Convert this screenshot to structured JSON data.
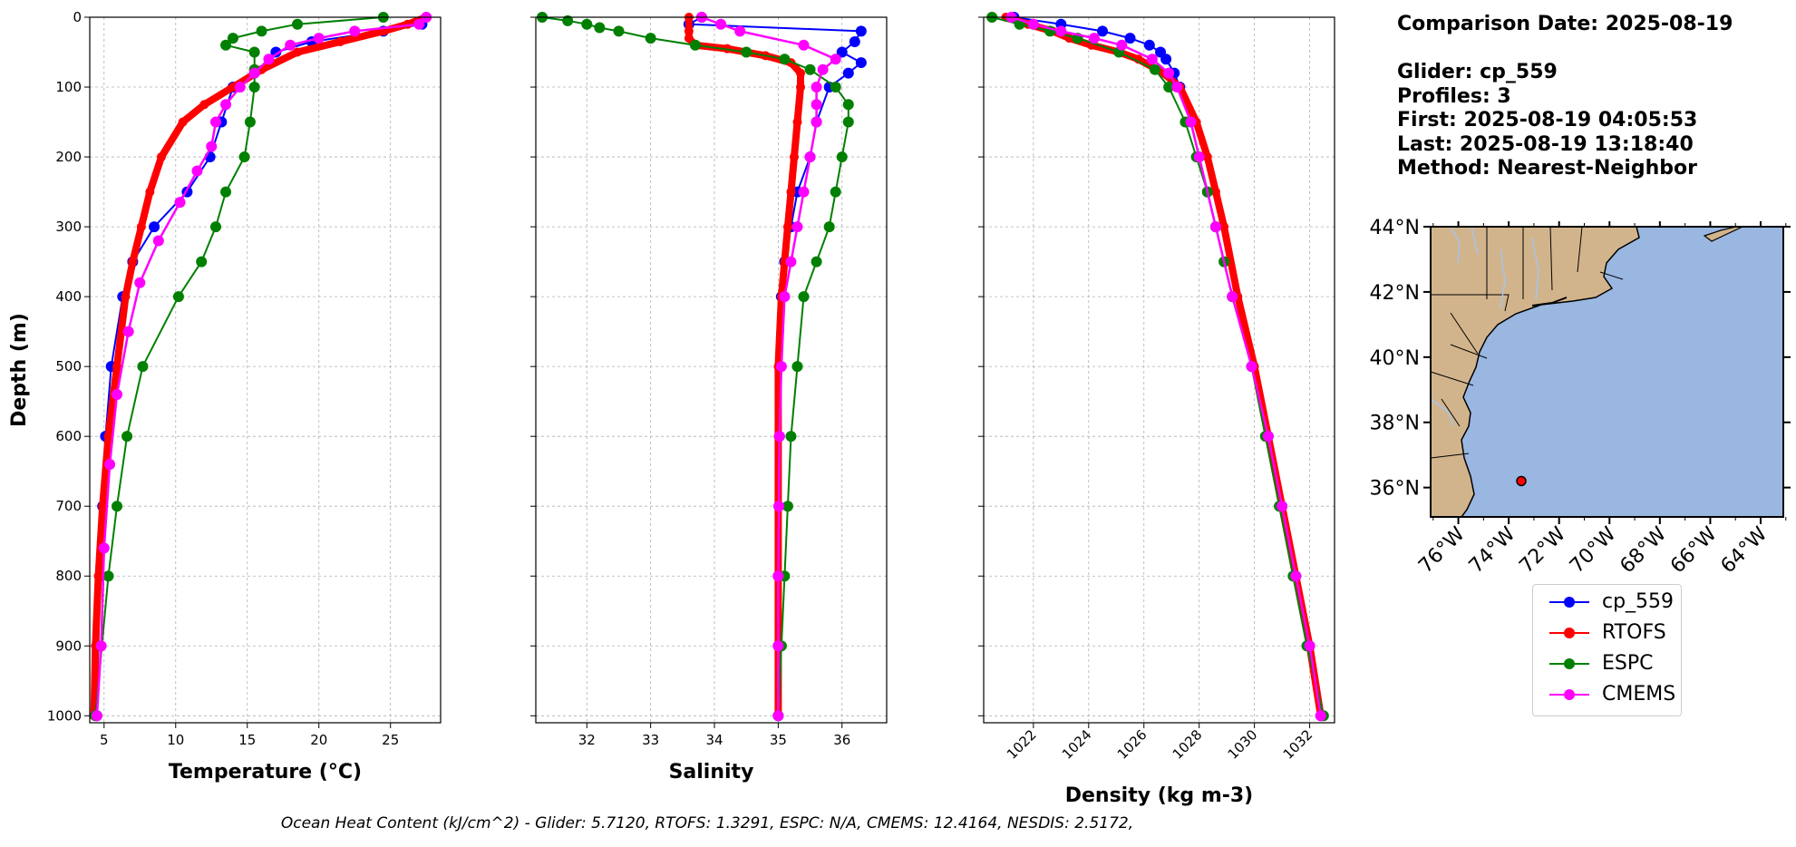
{
  "info": {
    "comparison_date": "Comparison Date: 2025-08-19",
    "glider": "Glider: cp_559",
    "profiles": "Profiles: 3",
    "first": "First: 2025-08-19 04:05:53",
    "last": "Last: 2025-08-19 13:18:40",
    "method": "Method: Nearest-Neighbor"
  },
  "footer": "Ocean Heat Content (kJ/cm^2) - Glider: 5.7120,  RTOFS: 1.3291,  ESPC: N/A,  CMEMS: 12.4164,  NESDIS: 2.5172,",
  "colors": {
    "glider": "#0000ff",
    "rtofs": "#ff0000",
    "espc": "#008000",
    "cmems": "#ff00ff",
    "glider_raw": "#00ffff",
    "land": "#d2b48c",
    "ocean": "#9ab7e2",
    "rivers": "#a6c4e8"
  },
  "chart_data": [
    {
      "type": "line",
      "xlabel": "Temperature (°C)",
      "ylabel": "Depth (m)",
      "xlim": [
        4,
        28.5
      ],
      "ylim": [
        1010,
        0
      ],
      "xticks": [
        5,
        10,
        15,
        20,
        25
      ],
      "yticks": [
        0,
        100,
        200,
        300,
        400,
        500,
        600,
        700,
        800,
        900,
        1000
      ],
      "grid": true,
      "series": [
        {
          "name": "cp_559",
          "y": [
            10,
            20,
            35,
            50,
            80,
            100,
            150,
            200,
            250,
            300,
            350,
            400,
            500,
            600,
            700,
            800,
            900,
            1000
          ],
          "x": [
            27.2,
            24.5,
            19.5,
            17.0,
            15.5,
            14.0,
            13.2,
            12.4,
            10.8,
            8.5,
            7.0,
            6.3,
            5.5,
            5.1,
            4.9,
            4.7,
            4.6,
            4.5
          ]
        },
        {
          "name": "RTOFS",
          "y": [
            0,
            10,
            20,
            35,
            50,
            75,
            100,
            125,
            150,
            200,
            250,
            300,
            350,
            400,
            500,
            600,
            700,
            800,
            900,
            1000
          ],
          "x": [
            27.5,
            26.2,
            24.5,
            21.5,
            18.5,
            16.0,
            14.0,
            12.0,
            10.5,
            9.0,
            8.2,
            7.6,
            7.0,
            6.5,
            5.9,
            5.3,
            4.9,
            4.6,
            4.4,
            4.3
          ]
        },
        {
          "name": "ESPC",
          "y": [
            0,
            10,
            20,
            30,
            40,
            50,
            75,
            100,
            150,
            200,
            250,
            300,
            350,
            400,
            500,
            600,
            700,
            800,
            1000
          ],
          "x": [
            24.5,
            18.5,
            16.0,
            14.0,
            13.5,
            15.5,
            15.5,
            15.5,
            15.2,
            14.8,
            13.5,
            12.8,
            11.8,
            10.2,
            7.7,
            6.6,
            5.9,
            5.3,
            4.4
          ]
        },
        {
          "name": "CMEMS",
          "y": [
            0,
            10,
            20,
            30,
            40,
            60,
            80,
            100,
            125,
            150,
            185,
            220,
            265,
            320,
            380,
            450,
            540,
            640,
            760,
            900,
            1000
          ],
          "x": [
            27.5,
            27.0,
            22.5,
            20.0,
            18.0,
            16.5,
            15.5,
            14.5,
            13.5,
            12.8,
            12.5,
            11.5,
            10.3,
            8.8,
            7.5,
            6.7,
            5.9,
            5.4,
            5.0,
            4.8,
            4.5
          ]
        }
      ]
    },
    {
      "type": "line",
      "xlabel": "Salinity",
      "xlim": [
        31.2,
        36.7
      ],
      "ylim": [
        1010,
        0
      ],
      "xticks": [
        32,
        33,
        34,
        35,
        36
      ],
      "grid": true,
      "series": [
        {
          "name": "cp_559",
          "y": [
            0,
            10,
            20,
            35,
            50,
            65,
            80,
            100,
            150,
            200,
            250,
            300,
            350,
            400,
            500,
            600,
            700,
            800,
            900,
            1000
          ],
          "x": [
            33.8,
            33.6,
            36.3,
            36.2,
            36.0,
            36.3,
            36.1,
            35.8,
            35.6,
            35.5,
            35.3,
            35.2,
            35.1,
            35.05,
            35.03,
            35.02,
            35.01,
            35.0,
            35.0,
            35.0
          ]
        },
        {
          "name": "RTOFS",
          "y": [
            0,
            20,
            30,
            40,
            45,
            55,
            65,
            80,
            100,
            150,
            200,
            250,
            300,
            350,
            400,
            500,
            600,
            700,
            800,
            900,
            1000
          ],
          "x": [
            33.6,
            33.6,
            33.6,
            33.7,
            34.2,
            34.8,
            35.2,
            35.35,
            35.35,
            35.3,
            35.25,
            35.2,
            35.15,
            35.1,
            35.05,
            35.0,
            35.0,
            35.0,
            35.0,
            35.0,
            35.0
          ]
        },
        {
          "name": "ESPC",
          "y": [
            0,
            5,
            10,
            15,
            20,
            30,
            40,
            50,
            60,
            75,
            100,
            125,
            150,
            200,
            250,
            300,
            350,
            400,
            500,
            600,
            700,
            800,
            900,
            1000
          ],
          "x": [
            31.3,
            31.7,
            32.0,
            32.2,
            32.5,
            33.0,
            33.7,
            34.5,
            35.1,
            35.5,
            35.9,
            36.1,
            36.1,
            36.0,
            35.9,
            35.8,
            35.6,
            35.4,
            35.3,
            35.2,
            35.15,
            35.1,
            35.05,
            35.0
          ]
        },
        {
          "name": "CMEMS",
          "y": [
            0,
            10,
            20,
            40,
            60,
            75,
            100,
            125,
            150,
            200,
            250,
            300,
            350,
            400,
            500,
            600,
            700,
            800,
            900,
            1000
          ],
          "x": [
            33.8,
            34.1,
            34.4,
            35.4,
            35.9,
            35.7,
            35.6,
            35.6,
            35.6,
            35.5,
            35.4,
            35.3,
            35.2,
            35.1,
            35.05,
            35.02,
            35.01,
            35.0,
            35.0,
            35.0
          ]
        }
      ]
    },
    {
      "type": "line",
      "xlabel": "Density (kg m-3)",
      "xlim": [
        1020.2,
        1032.9
      ],
      "ylim": [
        1010,
        0
      ],
      "xticks": [
        1022,
        1024,
        1026,
        1028,
        1030,
        1032
      ],
      "grid": true,
      "series": [
        {
          "name": "cp_559",
          "y": [
            0,
            10,
            20,
            30,
            40,
            50,
            60,
            80,
            100,
            150,
            200,
            250,
            300,
            400,
            500,
            600,
            700,
            800,
            900,
            1000
          ],
          "x": [
            1021.3,
            1023.0,
            1024.5,
            1025.5,
            1026.2,
            1026.6,
            1026.8,
            1027.1,
            1027.3,
            1027.7,
            1028.0,
            1028.3,
            1028.6,
            1029.2,
            1029.9,
            1030.5,
            1031.0,
            1031.5,
            1032.0,
            1032.4
          ]
        },
        {
          "name": "RTOFS",
          "y": [
            0,
            10,
            20,
            30,
            40,
            50,
            60,
            80,
            100,
            150,
            200,
            250,
            300,
            400,
            500,
            600,
            700,
            800,
            900,
            1000
          ],
          "x": [
            1021.0,
            1021.8,
            1022.7,
            1023.3,
            1024.1,
            1025.1,
            1025.8,
            1026.7,
            1027.3,
            1027.9,
            1028.3,
            1028.6,
            1028.9,
            1029.4,
            1030.0,
            1030.5,
            1031.0,
            1031.5,
            1032.0,
            1032.4
          ]
        },
        {
          "name": "ESPC",
          "y": [
            0,
            10,
            20,
            30,
            50,
            75,
            100,
            150,
            200,
            250,
            300,
            350,
            400,
            500,
            600,
            700,
            800,
            900,
            1000
          ],
          "x": [
            1020.5,
            1021.5,
            1022.6,
            1023.6,
            1025.1,
            1026.4,
            1026.9,
            1027.5,
            1027.9,
            1028.3,
            1028.6,
            1028.9,
            1029.2,
            1029.9,
            1030.4,
            1030.9,
            1031.4,
            1031.9,
            1032.5
          ]
        },
        {
          "name": "CMEMS",
          "y": [
            0,
            10,
            20,
            30,
            40,
            60,
            80,
            100,
            150,
            200,
            300,
            400,
            500,
            600,
            700,
            800,
            900,
            1000
          ],
          "x": [
            1021.2,
            1022.0,
            1023.0,
            1024.2,
            1025.2,
            1026.3,
            1026.9,
            1027.2,
            1027.7,
            1028.0,
            1028.6,
            1029.2,
            1029.9,
            1030.5,
            1031.0,
            1031.5,
            1032.0,
            1032.4
          ]
        }
      ]
    }
  ],
  "map": {
    "lat_labels": [
      "44°N",
      "42°N",
      "40°N",
      "38°N",
      "36°N"
    ],
    "lat_values": [
      44,
      42,
      40,
      38,
      36
    ],
    "lon_labels": [
      "76°W",
      "74°W",
      "72°W",
      "70°W",
      "68°W",
      "66°W",
      "64°W"
    ],
    "lon_values": [
      -76,
      -74,
      -72,
      -70,
      -68,
      -66,
      -64
    ],
    "extent": {
      "lon": [
        -77.1,
        -63.1
      ],
      "lat": [
        35.1,
        44.0
      ]
    },
    "glider_position": {
      "lon": -73.5,
      "lat": 36.2
    }
  },
  "legend": [
    {
      "key": "glider",
      "label": "cp_559"
    },
    {
      "key": "rtofs",
      "label": "RTOFS"
    },
    {
      "key": "espc",
      "label": "ESPC"
    },
    {
      "key": "cmems",
      "label": "CMEMS"
    }
  ]
}
